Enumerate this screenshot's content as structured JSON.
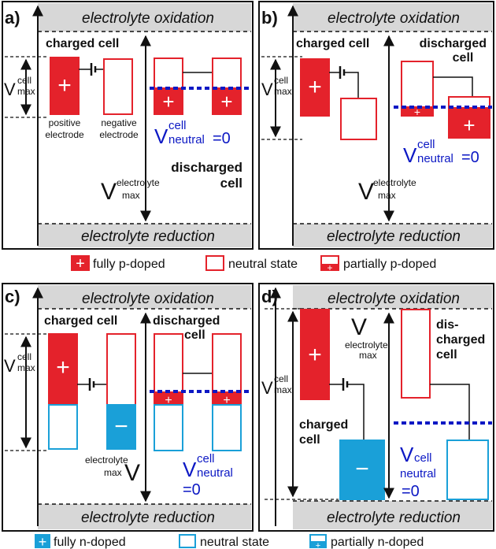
{
  "colors": {
    "p_doped": "#e4222b",
    "n_doped": "#1aa0d8",
    "neutral_p_outline": "#e4222b",
    "neutral_n_outline": "#1aa0d8",
    "v_neutral_line": "#0c18c4",
    "band_fill": "#d7d7d7"
  },
  "band": {
    "oxidation": "electrolyte oxidation",
    "reduction": "electrolyte reduction"
  },
  "panel_a": {
    "letter": "a)",
    "charged_cell": "charged cell",
    "positive_electrode": [
      "positive",
      "electrode"
    ],
    "negative_electrode": [
      "negative",
      "electrode"
    ],
    "discharged_cell": [
      "discharged",
      "cell"
    ],
    "v_neutral_base": "V",
    "v_neutral_sup": "cell",
    "v_neutral_sub": "neutral",
    "v_neutral_eq": "=0",
    "v_max_electrolyte_base": "V",
    "v_max_electrolyte_sup": "electrolyte",
    "v_max_electrolyte_sub": "max",
    "v_max_cell_base": "V",
    "v_max_cell_sup": "cell",
    "v_max_cell_sub": "max"
  },
  "panel_b": {
    "letter": "b)",
    "charged_cell": "charged cell",
    "discharged_cell": [
      "discharged",
      "cell"
    ],
    "v_neutral_base": "V",
    "v_neutral_sup": "cell",
    "v_neutral_sub": "neutral",
    "v_neutral_eq": "=0",
    "v_max_electrolyte_base": "V",
    "v_max_electrolyte_sup": "electrolyte",
    "v_max_electrolyte_sub": "max",
    "v_max_cell_base": "V",
    "v_max_cell_sup": "cell",
    "v_max_cell_sub": "max"
  },
  "panel_c": {
    "letter": "c)",
    "charged_cell": "charged cell",
    "discharged_cell": [
      "discharged",
      "cell"
    ],
    "v_neutral_base": "V",
    "v_neutral_sup": "cell",
    "v_neutral_sub": "neutral",
    "v_neutral_eq": "=0",
    "v_max_electrolyte_base": "V",
    "v_max_electrolyte_sup": "electrolyte",
    "v_max_electrolyte_sub": "max",
    "v_max_cell_base": "V",
    "v_max_cell_sup": "cell",
    "v_max_cell_sub": "max"
  },
  "panel_d": {
    "letter": "d)",
    "charged_cell": [
      "charged",
      "cell"
    ],
    "discharged_cell": [
      "dis-",
      "charged",
      "cell"
    ],
    "v_neutral_base": "V",
    "v_neutral_sup": "cell",
    "v_neutral_sub": "neutral",
    "v_neutral_eq": "=0",
    "v_max_electrolyte_base": "V",
    "v_max_electrolyte_sup": "electrolyte",
    "v_max_electrolyte_sub": "max",
    "v_max_cell_base": "V",
    "v_max_cell_sup": "cell",
    "v_max_cell_sub": "max"
  },
  "legend_p": {
    "fully": "fully p-doped",
    "neutral": "neutral state",
    "partially": "partially p-doped"
  },
  "legend_n": {
    "fully": "fully n-doped",
    "neutral": "neutral state",
    "partially": "partially n-doped"
  },
  "symbols": {
    "plus": "+",
    "minus": "−"
  }
}
